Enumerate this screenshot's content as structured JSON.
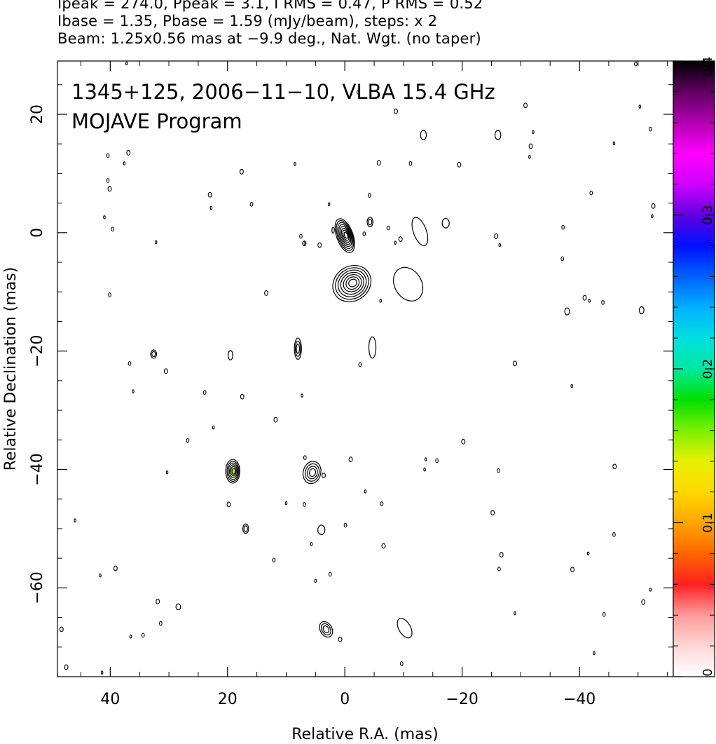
{
  "header": {
    "line1": "Ipeak = 274.0, Ppeak = 3.1, I RMS = 0.47, P RMS = 0.52",
    "line2": "Ibase = 1.35, Pbase = 1.59 (mJy/beam), steps: x 2",
    "line3": "Beam: 1.25x0.56 mas at −9.9 deg., Nat. Wgt. (no taper)"
  },
  "chart_data": {
    "type": "heatmap",
    "annotation_line1": "1345+125, 2006−11−10, VLBA 15.4 GHz",
    "annotation_line2": "MOJAVE Program",
    "xlabel": "Relative R.A. (mas)",
    "ylabel": "Relative Declination (mas)",
    "xlim": [
      49,
      -56
    ],
    "ylim": [
      -75,
      29
    ],
    "x_ticks": [
      40,
      20,
      0,
      -20,
      -40
    ],
    "x_tick_labels": [
      "40",
      "20",
      "0",
      "−20",
      "−40"
    ],
    "y_ticks": [
      20,
      0,
      -20,
      -40,
      -60
    ],
    "y_tick_labels": [
      "20",
      "0",
      "−20",
      "−40",
      "−60"
    ],
    "colorbar": {
      "range": [
        0,
        0.4
      ],
      "ticks": [
        0,
        0.1,
        0.2,
        0.3,
        0.4
      ],
      "tick_labels": [
        "0",
        "0.1",
        "0.2",
        "0.3",
        "0.4"
      ],
      "stops": [
        "#ffffff",
        "#ffd6d6",
        "#ff9a9a",
        "#ff2020",
        "#ff6600",
        "#ffa500",
        "#ffd800",
        "#e6f000",
        "#7cf000",
        "#00e000",
        "#00e8a0",
        "#00e0e0",
        "#00b0ff",
        "#0060ff",
        "#0010ff",
        "#6000e0",
        "#d000ff",
        "#ff00ff",
        "#b000b0",
        "#600060",
        "#000000"
      ]
    },
    "components": [
      {
        "x": 0.0,
        "y": -0.5,
        "rx": 1.4,
        "ry": 3.0,
        "angle": -20,
        "levels": 8,
        "peak": 274.0
      },
      {
        "x": -1.2,
        "y": -8.6,
        "rx": 3.4,
        "ry": 2.9,
        "angle": -35,
        "levels": 7
      },
      {
        "x": 19.1,
        "y": -40.3,
        "rx": 1.2,
        "ry": 2.0,
        "angle": 0,
        "levels": 6,
        "color_fill": 0.17
      },
      {
        "x": 5.6,
        "y": -40.5,
        "rx": 1.5,
        "ry": 1.9,
        "angle": 15,
        "levels": 4
      },
      {
        "x": -12.8,
        "y": 0.2,
        "rx": 1.1,
        "ry": 2.5,
        "angle": -20,
        "levels": 1
      },
      {
        "x": -10.8,
        "y": -8.7,
        "rx": 2.3,
        "ry": 3.0,
        "angle": -30,
        "levels": 1
      },
      {
        "x": 8.0,
        "y": -19.6,
        "rx": 0.6,
        "ry": 1.8,
        "angle": 0,
        "levels": 3
      },
      {
        "x": -4.7,
        "y": -19.4,
        "rx": 0.6,
        "ry": 1.8,
        "angle": 0,
        "levels": 1
      },
      {
        "x": 3.2,
        "y": -67.0,
        "rx": 1.0,
        "ry": 1.4,
        "angle": -30,
        "levels": 3
      },
      {
        "x": -10.2,
        "y": -66.8,
        "rx": 1.0,
        "ry": 1.8,
        "angle": -30,
        "levels": 1
      },
      {
        "x": 32.6,
        "y": -20.5,
        "rx": 0.5,
        "ry": 0.7,
        "angle": 0,
        "levels": 2
      },
      {
        "x": 16.9,
        "y": -50.0,
        "rx": 0.5,
        "ry": 0.8,
        "angle": 0,
        "levels": 2
      },
      {
        "x": 4.0,
        "y": -50.2,
        "rx": 0.6,
        "ry": 0.8,
        "angle": 0,
        "levels": 1
      },
      {
        "x": -4.3,
        "y": 1.8,
        "rx": 0.5,
        "ry": 0.8,
        "angle": 0,
        "levels": 2
      },
      {
        "x": -17.2,
        "y": 1.6,
        "rx": 0.6,
        "ry": 0.8,
        "angle": 0,
        "levels": 1
      },
      {
        "x": 19.5,
        "y": -20.7,
        "rx": 0.4,
        "ry": 0.8,
        "angle": 0,
        "levels": 1
      },
      {
        "x": -26.1,
        "y": 16.5,
        "rx": 0.5,
        "ry": 0.8,
        "angle": 0,
        "levels": 1
      },
      {
        "x": -13.4,
        "y": 16.5,
        "rx": 0.5,
        "ry": 0.8,
        "angle": 0,
        "levels": 1
      },
      {
        "x": -37.9,
        "y": -13.3,
        "rx": 0.4,
        "ry": 0.6,
        "angle": 0,
        "levels": 1
      },
      {
        "x": -50.6,
        "y": -13.1,
        "rx": 0.4,
        "ry": 0.6,
        "angle": 0,
        "levels": 1
      },
      {
        "x": 28.4,
        "y": -63.2,
        "rx": 0.4,
        "ry": 0.5,
        "angle": 0,
        "levels": 1
      },
      {
        "x": 2.0,
        "y": 0.4,
        "rx": 0.2,
        "ry": 0.5,
        "angle": 0,
        "levels": 1
      },
      {
        "x": 7.0,
        "y": -1.8,
        "rx": 0.2,
        "ry": 0.3,
        "angle": 0,
        "levels": 1
      }
    ],
    "noise_points": [
      [
        37.2,
        28.6
      ],
      [
        -2.3,
        23.7
      ],
      [
        -8.7,
        20.5
      ],
      [
        -32.1,
        17.0
      ],
      [
        -49.6,
        28.5
      ],
      [
        -30.8,
        21.5
      ],
      [
        -50.3,
        21.3
      ],
      [
        -52.1,
        17.5
      ],
      [
        -31.7,
        14.6
      ],
      [
        -31.5,
        12.8
      ],
      [
        -11.2,
        11.7
      ],
      [
        -19.5,
        11.5
      ],
      [
        -45.9,
        15.1
      ],
      [
        -42.0,
        6.7
      ],
      [
        -52.6,
        4.5
      ],
      [
        -52.4,
        2.8
      ],
      [
        -37.2,
        0.9
      ],
      [
        -25.8,
        -0.6
      ],
      [
        -26.4,
        -2.1
      ],
      [
        -37.1,
        -4.4
      ],
      [
        -40.9,
        -11.0
      ],
      [
        -41.7,
        -11.5
      ],
      [
        -44.0,
        -11.8
      ],
      [
        -29.0,
        -22.1
      ],
      [
        -38.7,
        -25.9
      ],
      [
        40.4,
        13.0
      ],
      [
        36.9,
        13.5
      ],
      [
        37.6,
        11.7
      ],
      [
        40.4,
        8.8
      ],
      [
        40.1,
        7.4
      ],
      [
        41.0,
        2.6
      ],
      [
        39.6,
        0.6
      ],
      [
        23.0,
        6.4
      ],
      [
        22.8,
        4.2
      ],
      [
        15.9,
        4.8
      ],
      [
        17.6,
        10.3
      ],
      [
        2.7,
        4.8
      ],
      [
        -4.2,
        6.3
      ],
      [
        -5.8,
        11.8
      ],
      [
        8.5,
        11.6
      ],
      [
        7.5,
        -0.6
      ],
      [
        6.9,
        -1.8
      ],
      [
        32.2,
        -1.6
      ],
      [
        40.1,
        -10.5
      ],
      [
        13.4,
        -10.2
      ],
      [
        -6.1,
        -11.5
      ],
      [
        36.7,
        -22.1
      ],
      [
        30.5,
        -23.4
      ],
      [
        36.1,
        -26.8
      ],
      [
        23.9,
        -27.0
      ],
      [
        17.5,
        -27.7
      ],
      [
        7.3,
        -27.5
      ],
      [
        -2.6,
        -22.3
      ],
      [
        11.8,
        -31.6
      ],
      [
        22.4,
        -32.9
      ],
      [
        26.8,
        -35.1
      ],
      [
        -20.2,
        -35.3
      ],
      [
        -13.8,
        -38.3
      ],
      [
        -15.7,
        -38.5
      ],
      [
        -1.0,
        -38.3
      ],
      [
        -13.6,
        -40.0
      ],
      [
        -26.2,
        -40.2
      ],
      [
        -46.0,
        -39.5
      ],
      [
        30.3,
        -40.5
      ],
      [
        6.8,
        -38.0
      ],
      [
        19.8,
        -45.9
      ],
      [
        10.0,
        -45.7
      ],
      [
        6.9,
        -45.9
      ],
      [
        3.6,
        -41.0
      ],
      [
        -3.5,
        -43.7
      ],
      [
        -6.3,
        -45.8
      ],
      [
        -25.2,
        -47.3
      ],
      [
        46.0,
        -48.6
      ],
      [
        -0.1,
        -49.4
      ],
      [
        -6.6,
        -52.9
      ],
      [
        5.7,
        -52.6
      ],
      [
        -45.9,
        -51.0
      ],
      [
        -26.7,
        -54.4
      ],
      [
        -41.5,
        -54.2
      ],
      [
        12.1,
        -55.3
      ],
      [
        39.1,
        -56.7
      ],
      [
        41.7,
        -57.9
      ],
      [
        -26.3,
        -56.8
      ],
      [
        -38.8,
        -56.9
      ],
      [
        5.0,
        -58.8
      ],
      [
        2.5,
        -57.7
      ],
      [
        31.9,
        -62.3
      ],
      [
        -29.0,
        -64.3
      ],
      [
        -44.2,
        -64.5
      ],
      [
        -50.9,
        -62.4
      ],
      [
        -52.1,
        -60.3
      ],
      [
        31.4,
        -66.0
      ],
      [
        48.3,
        -67.0
      ],
      [
        36.5,
        -68.2
      ],
      [
        34.4,
        -68.0
      ],
      [
        0.8,
        -68.7
      ],
      [
        -42.5,
        -71.0
      ],
      [
        -9.7,
        -72.8
      ],
      [
        47.5,
        -73.4
      ],
      [
        41.4,
        -74.3
      ],
      [
        -7.4,
        0.8
      ],
      [
        -9.5,
        -1.1
      ],
      [
        -8.6,
        -1.7
      ],
      [
        -3.3,
        -0.2
      ],
      [
        4.3,
        -2.1
      ]
    ]
  }
}
